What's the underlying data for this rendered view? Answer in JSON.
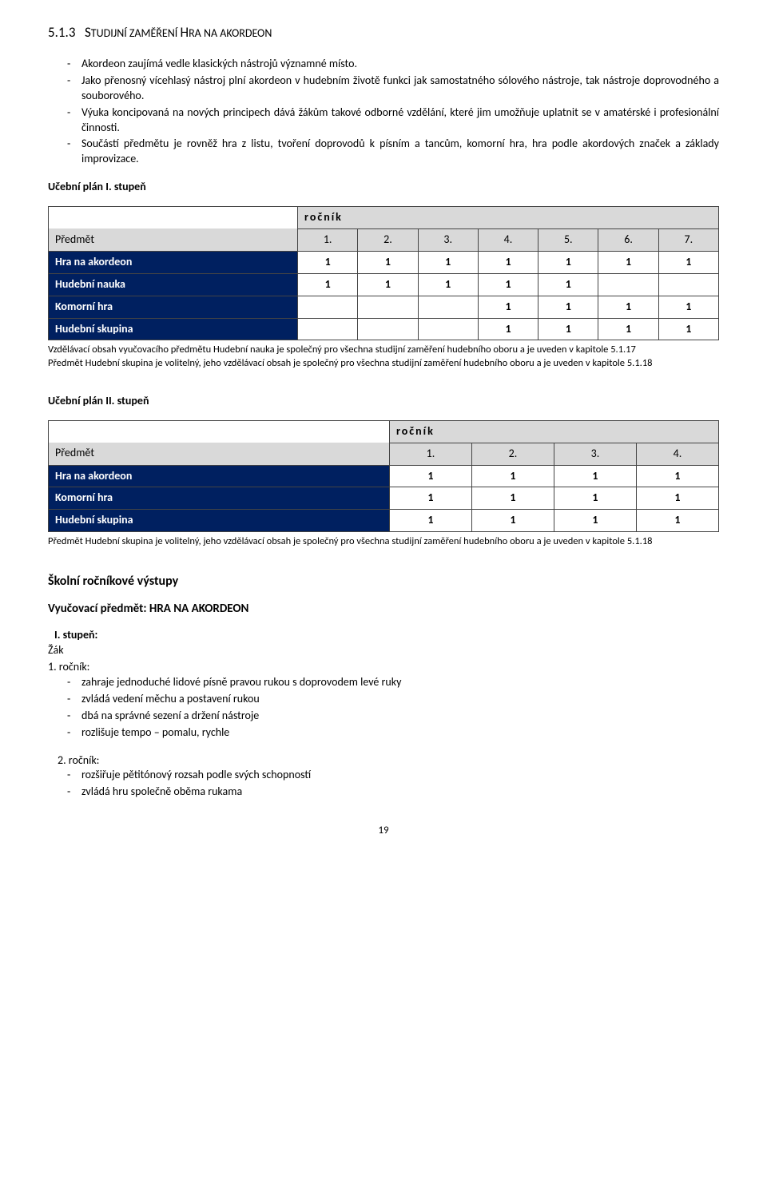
{
  "heading": {
    "number": "5.1.3",
    "title_prefix": "S",
    "title_rest": "TUDIJNÍ ZAMĚŘENÍ ",
    "title_prefix2": "H",
    "title_rest2": "RA NA AKORDEON"
  },
  "intro_bullets": [
    "Akordeon zaujímá vedle klasických nástrojů významné místo.",
    "Jako přenosný vícehlasý nástroj plní akordeon v hudebním životě funkci jak samostatného sólového nástroje, tak nástroje doprovodného a souborového.",
    "Výuka koncipovaná na nových principech dává žákům takové odborné vzdělání, které jim umožňuje uplatnit se v amatérské i profesionální činnosti.",
    "Součástí předmětu je rovněž hra z listu, tvoření doprovodů k písním a tancům, komorní hra, hra podle akordových značek a základy improvizace."
  ],
  "plan1": {
    "title": "Učební plán I. stupeň",
    "rocnik_label": "ročník",
    "predmet_label": "Předmět",
    "cols": [
      "1.",
      "2.",
      "3.",
      "4.",
      "5.",
      "6.",
      "7."
    ],
    "rows": [
      {
        "label": "Hra na akordeon",
        "vals": [
          "1",
          "1",
          "1",
          "1",
          "1",
          "1",
          "1"
        ]
      },
      {
        "label": "Hudební nauka",
        "vals": [
          "1",
          "1",
          "1",
          "1",
          "1",
          "",
          ""
        ]
      },
      {
        "label": "Komorní hra",
        "vals": [
          "",
          "",
          "",
          "1",
          "1",
          "1",
          "1"
        ]
      },
      {
        "label": "Hudební skupina",
        "vals": [
          "",
          "",
          "",
          "1",
          "1",
          "1",
          "1"
        ]
      }
    ],
    "note": "Vzdělávací obsah vyučovacího předmětu Hudební nauka je společný pro všechna studijní zaměření hudebního oboru a je uveden v kapitole 5.1.17\nPředmět Hudební skupina je volitelný, jeho vzdělávací obsah je společný pro všechna studijní zaměření hudebního oboru a je uveden v kapitole 5.1.18"
  },
  "plan2": {
    "title": "Učební plán II. stupeň",
    "rocnik_label": "ročník",
    "predmet_label": "Předmět",
    "cols": [
      "1.",
      "2.",
      "3.",
      "4."
    ],
    "rows": [
      {
        "label": "Hra na akordeon",
        "vals": [
          "1",
          "1",
          "1",
          "1"
        ]
      },
      {
        "label": "Komorní hra",
        "vals": [
          "1",
          "1",
          "1",
          "1"
        ]
      },
      {
        "label": "Hudební skupina",
        "vals": [
          "1",
          "1",
          "1",
          "1"
        ]
      }
    ],
    "note": "Předmět Hudební skupina je volitelný, jeho vzdělávací obsah je společný pro všechna studijní zaměření hudebního oboru a je uveden v kapitole 5.1.18"
  },
  "outputs": {
    "heading": "Školní ročníkové výstupy",
    "subject": "Vyučovací předmět: HRA NA AKORDEON",
    "stage": "I. stupeň:",
    "zak": "Žák",
    "r1_label": "1. ročník:",
    "r1_bullets": [
      "zahraje jednoduché lidové písně pravou rukou s doprovodem levé ruky",
      "zvládá vedení měchu a postavení rukou",
      "dbá na správné sezení a držení nástroje",
      "rozlišuje tempo – pomalu, rychle"
    ],
    "r2_label": "2. ročník:",
    "r2_bullets": [
      "rozšiřuje pětitónový rozsah podle svých schopností",
      "zvládá hru společně oběma rukama"
    ]
  },
  "page_number": "19"
}
